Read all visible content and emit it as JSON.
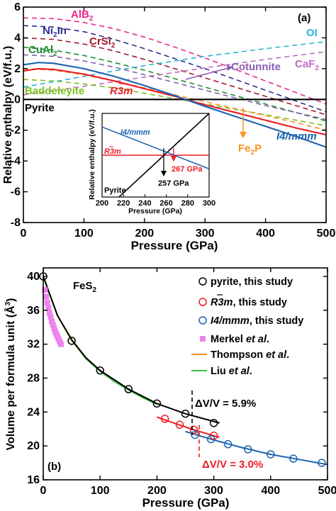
{
  "chart_data": [
    {
      "type": "line",
      "panel_label": "(a)",
      "xlabel": "Pressure (GPa)",
      "ylabel": "Relative enthalpy (eV/f.u.)",
      "xlim": [
        0,
        500
      ],
      "ylim": [
        -8,
        6
      ],
      "xticks": [
        "0",
        "100",
        "200",
        "300",
        "400",
        "500"
      ],
      "yticks": [
        "-8",
        "-6",
        "-4",
        "-2",
        "0",
        "2",
        "4",
        "6"
      ],
      "grid": false,
      "series": [
        {
          "name": "AlB2",
          "style": "dashed",
          "color": "#e8288c",
          "x": [
            0,
            50,
            100,
            150,
            200,
            250,
            300,
            350,
            400,
            450,
            500
          ],
          "y": [
            5.3,
            5.25,
            5.0,
            4.6,
            4.05,
            3.4,
            2.7,
            1.95,
            1.2,
            0.45,
            -0.3
          ]
        },
        {
          "name": "Ni2In",
          "style": "dashed",
          "color": "#2e3192",
          "x": [
            0,
            50,
            100,
            150,
            200,
            250,
            300,
            350,
            400,
            450,
            500
          ],
          "y": [
            4.8,
            4.7,
            4.4,
            3.9,
            3.3,
            2.65,
            2.0,
            1.3,
            0.6,
            -0.1,
            -0.8
          ]
        },
        {
          "name": "CrSi2",
          "style": "dashed",
          "color": "#a0182c",
          "x": [
            0,
            50,
            100,
            150,
            200,
            250,
            300,
            350,
            400,
            450,
            500
          ],
          "y": [
            4.0,
            3.9,
            3.6,
            3.15,
            2.6,
            2.0,
            1.4,
            0.8,
            0.2,
            -0.4,
            -1.0
          ]
        },
        {
          "name": "CuAl2",
          "style": "dashed",
          "color": "#1a8a2e",
          "x": [
            0,
            50,
            100,
            150,
            200,
            250,
            300,
            350,
            400,
            450,
            500
          ],
          "y": [
            3.4,
            3.2,
            2.85,
            2.4,
            1.9,
            1.35,
            0.8,
            0.25,
            -0.3,
            -0.85,
            -1.4
          ]
        },
        {
          "name": "OI",
          "style": "dashed",
          "color": "#29b5d8",
          "x": [
            0,
            100,
            200,
            300,
            400,
            500
          ],
          "y": [
            0.8,
            1.5,
            2.2,
            2.8,
            3.3,
            3.75
          ]
        },
        {
          "name": "CaF2",
          "style": "dashed",
          "color": "#c06bc4",
          "x": [
            0,
            100,
            200,
            300,
            400,
            500
          ],
          "y": [
            0.3,
            0.85,
            1.45,
            2.05,
            2.6,
            3.1
          ]
        },
        {
          "name": "Cotunnite",
          "style": "dashed",
          "color": "#8a5bb0",
          "x": [
            0,
            50,
            100,
            150,
            200,
            250,
            300,
            350,
            400,
            450,
            500
          ],
          "y": [
            2.9,
            2.8,
            2.5,
            2.1,
            1.6,
            1.1,
            0.6,
            0.1,
            -0.4,
            -0.85,
            -1.3
          ]
        },
        {
          "name": "Baddeleyite",
          "style": "dashed",
          "color": "#7cc21e",
          "x": [
            0,
            50,
            100,
            150,
            200,
            250,
            300,
            350,
            400,
            450,
            500
          ],
          "y": [
            1.3,
            1.2,
            1.0,
            0.75,
            0.4,
            0.05,
            -0.3,
            -0.65,
            -1.0,
            -1.35,
            -1.7
          ]
        },
        {
          "name": "Fe2P",
          "style": "dashed",
          "color": "#f7931e",
          "x": [
            0,
            50,
            100,
            150,
            200,
            250,
            300,
            350,
            400,
            450,
            500
          ],
          "y": [
            2.0,
            1.9,
            1.6,
            1.2,
            0.75,
            0.3,
            -0.15,
            -0.6,
            -1.05,
            -1.5,
            -2.0
          ]
        },
        {
          "name": "Pyrite",
          "style": "solid",
          "color": "#000000",
          "x": [
            0,
            500
          ],
          "y": [
            0,
            0
          ]
        },
        {
          "name": "R-3m",
          "style": "solid",
          "color": "#ee1c24",
          "x": [
            0,
            25,
            50,
            100,
            150,
            200,
            250,
            300,
            350,
            400,
            450,
            500
          ],
          "y": [
            1.85,
            2.0,
            1.95,
            1.65,
            1.2,
            0.7,
            0.2,
            -0.35,
            -0.85,
            -1.35,
            -1.85,
            -2.3
          ]
        },
        {
          "name": "I4/mmm",
          "style": "solid",
          "color": "#1b63b0",
          "x": [
            0,
            25,
            50,
            100,
            150,
            200,
            250,
            300,
            350,
            400,
            450,
            500
          ],
          "y": [
            2.25,
            2.4,
            2.35,
            2.0,
            1.5,
            0.9,
            0.25,
            -0.45,
            -1.1,
            -1.75,
            -2.4,
            -3.1
          ]
        }
      ],
      "labels": {
        "AlB2": "AlB",
        "AlB2_sub": "2",
        "Ni2In": "Ni",
        "Ni2In_sub": "2",
        "Ni2In_rest": "In",
        "CrSi2": "CrSi",
        "CrSi2_sub": "2",
        "CuAl2": "CuAl",
        "CuAl2_sub": "2",
        "OI": "OI",
        "CaF2": "CaF",
        "CaF2_sub": "2",
        "Cotunnite": "Cotunnite",
        "Baddeleyite": "Baddeleyite",
        "R3m": "R3m",
        "Pyrite": "Pyrite",
        "Fe2P": "Fe",
        "Fe2P_sub": "2",
        "Fe2P_rest": "P",
        "I4mmm": "I4/mmm"
      },
      "inset": {
        "xlabel": "Pressure (GPa)",
        "ylabel": "Relative enthalpy (eV/f.u.)",
        "xlim": [
          200,
          300
        ],
        "xticks": [
          "200",
          "220",
          "240",
          "260",
          "280",
          "300"
        ],
        "ylim": [
          -0.4,
          0.4
        ],
        "series": [
          {
            "name": "Pyrite",
            "color": "#000000",
            "x": [
              200,
              300
            ],
            "y": [
              -0.55,
              0.4
            ]
          },
          {
            "name": "R-3m",
            "color": "#ee1c24",
            "x": [
              200,
              300
            ],
            "y": [
              0,
              0
            ]
          },
          {
            "name": "I4/mmm",
            "color": "#1b63b0",
            "x": [
              200,
              300
            ],
            "y": [
              0.27,
              -0.13
            ]
          }
        ],
        "annotations": [
          {
            "text": "I4/mmm",
            "color": "#1b63b0"
          },
          {
            "text": "R3m",
            "color": "#ee1c24"
          },
          {
            "text": "267 GPa",
            "color": "#ee1c24"
          },
          {
            "text": "257 GPa",
            "color": "#000000"
          },
          {
            "text": "Pyrite",
            "color": "#000000"
          }
        ]
      }
    },
    {
      "type": "scatter",
      "panel_label": "(b)",
      "compound": "FeS",
      "compound_sub": "2",
      "xlabel": "Pressure (GPa)",
      "ylabel": "Volume per formula unit (Å",
      "ylabel_sup": "3",
      "ylabel_end": ")",
      "xlim": [
        0,
        500
      ],
      "ylim": [
        16,
        41
      ],
      "xticks": [
        "0",
        "100",
        "200",
        "300",
        "400",
        "500"
      ],
      "yticks": [
        "16",
        "20",
        "24",
        "28",
        "32",
        "36",
        "40"
      ],
      "grid": false,
      "series": [
        {
          "name": "pyrite, this study",
          "marker": "circle",
          "color": "#000000",
          "x": [
            0,
            50,
            100,
            150,
            200,
            250,
            300
          ],
          "y": [
            40.0,
            32.4,
            28.9,
            26.7,
            25.0,
            23.8,
            22.7
          ]
        },
        {
          "name": "R3m, this study",
          "marker": "circle",
          "color": "#ee1c24",
          "x": [
            214,
            240,
            265,
            300
          ],
          "y": [
            23.2,
            22.5,
            21.9,
            21.2
          ]
        },
        {
          "name": "I4/mmm, this study",
          "marker": "circle",
          "color": "#1b63b0",
          "x": [
            267,
            295,
            325,
            360,
            400,
            440,
            490
          ],
          "y": [
            21.3,
            20.8,
            20.2,
            19.6,
            19.0,
            18.5,
            18.0
          ]
        },
        {
          "name": "Merkel et al.",
          "marker": "square",
          "color": "#ee82ee",
          "x": [
            3,
            5,
            7,
            9,
            11,
            13,
            15,
            17,
            19,
            21,
            23,
            25,
            27,
            29,
            31
          ],
          "y": [
            38.4,
            37.6,
            36.9,
            36.3,
            35.7,
            35.2,
            34.7,
            34.3,
            33.9,
            33.5,
            33.2,
            32.9,
            32.6,
            32.3,
            32.0
          ]
        },
        {
          "name": "Thompson et al.",
          "line": "solid",
          "color": "#f7931e",
          "x": [
            0,
            25,
            50,
            75,
            100,
            125,
            150,
            175,
            200
          ],
          "y": [
            40.0,
            35.4,
            32.6,
            30.4,
            28.9,
            27.6,
            26.7,
            25.8,
            25.0
          ]
        },
        {
          "name": "Liu et al.",
          "line": "solid",
          "color": "#39c13c",
          "x": [
            0,
            25,
            50,
            75,
            100,
            125,
            150,
            175,
            200
          ],
          "y": [
            40.0,
            35.4,
            32.5,
            30.3,
            28.8,
            27.6,
            26.6,
            25.7,
            24.9
          ]
        }
      ],
      "fit_lines": [
        {
          "name": "pyrite fit",
          "color": "#000000",
          "x": [
            0,
            25,
            50,
            75,
            100,
            150,
            200,
            250,
            310
          ],
          "y": [
            40.0,
            35.4,
            32.5,
            30.4,
            28.9,
            26.7,
            25.0,
            23.8,
            22.7
          ]
        },
        {
          "name": "R3m fit",
          "color": "#ee1c24",
          "x": [
            200,
            230,
            260,
            290,
            310
          ],
          "y": [
            23.4,
            22.7,
            22.0,
            21.4,
            21.0
          ]
        },
        {
          "name": "I4/mmm fit",
          "color": "#1b63b0",
          "x": [
            250,
            300,
            350,
            400,
            450,
            500
          ],
          "y": [
            21.7,
            20.7,
            19.8,
            19.0,
            18.4,
            17.8
          ]
        }
      ],
      "annotations": [
        {
          "text": "ΔV/V = 5.9%",
          "color": "#000000"
        },
        {
          "text": "ΔV/V = 3.0%",
          "color": "#ee1c24"
        }
      ],
      "legend_position": "right",
      "legend": [
        {
          "pre": "",
          "ital": "",
          "post": "pyrite, this study"
        },
        {
          "pre": "",
          "ital": "R3m",
          "post": ", this study"
        },
        {
          "pre": "",
          "ital": "I4/mmm",
          "post": ", this study"
        },
        {
          "pre": "Merkel ",
          "ital": "et al",
          "post": "."
        },
        {
          "pre": "Thompson ",
          "ital": "et al",
          "post": "."
        },
        {
          "pre": "Liu ",
          "ital": "et al",
          "post": "."
        }
      ]
    }
  ]
}
